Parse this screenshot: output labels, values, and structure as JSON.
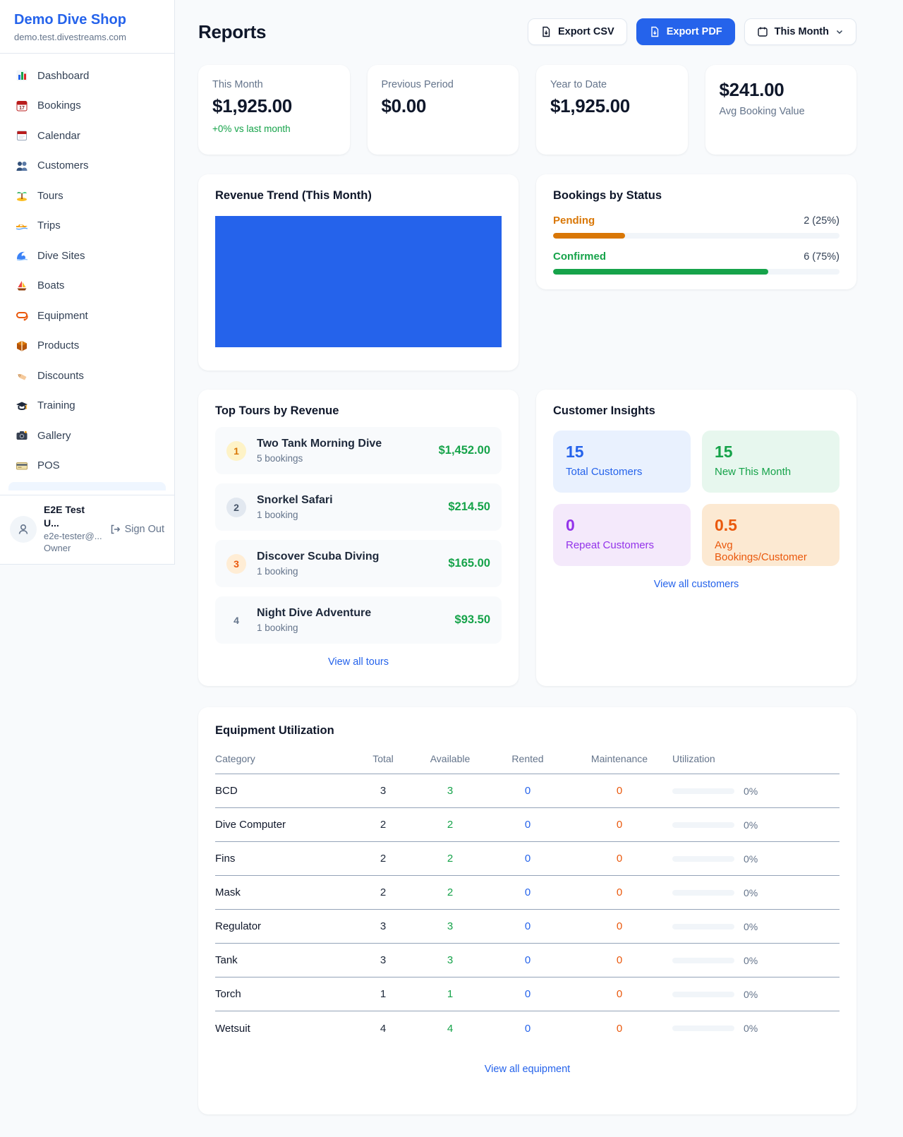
{
  "colors": {
    "accent": "#2563eb",
    "green": "#16a34a",
    "amber": "#d97706",
    "orange": "#ea580c",
    "purple": "#9333ea",
    "chart_bar": "#2563eb"
  },
  "sidebar": {
    "shop_name": "Demo Dive Shop",
    "shop_domain": "demo.test.divestreams.com",
    "items": [
      {
        "icon": "bar-chart",
        "label": "Dashboard"
      },
      {
        "icon": "calendar-17",
        "label": "Bookings"
      },
      {
        "icon": "notepad-calendar",
        "label": "Calendar"
      },
      {
        "icon": "people",
        "label": "Customers"
      },
      {
        "icon": "island",
        "label": "Tours"
      },
      {
        "icon": "speedboat",
        "label": "Trips"
      },
      {
        "icon": "wave",
        "label": "Dive Sites"
      },
      {
        "icon": "sailboat",
        "label": "Boats"
      },
      {
        "icon": "diving-mask",
        "label": "Equipment"
      },
      {
        "icon": "package",
        "label": "Products"
      },
      {
        "icon": "tag",
        "label": "Discounts"
      },
      {
        "icon": "graduation-cap",
        "label": "Training"
      },
      {
        "icon": "camera",
        "label": "Gallery"
      },
      {
        "icon": "credit-card",
        "label": "POS"
      }
    ],
    "user": {
      "name": "E2E Test U...",
      "email": "e2e-tester@...",
      "role": "Owner",
      "sign_out": "Sign Out"
    }
  },
  "header": {
    "title": "Reports",
    "export_csv": "Export CSV",
    "export_pdf": "Export PDF",
    "period": "This Month"
  },
  "stats": [
    {
      "label": "This Month",
      "value": "$1,925.00",
      "sub": "+0% vs last month"
    },
    {
      "label": "Previous Period",
      "value": "$0.00"
    },
    {
      "label": "Year to Date",
      "value": "$1,925.00"
    },
    {
      "label": "Avg Booking Value",
      "value": "$241.00"
    }
  ],
  "revenue_trend": {
    "title": "Revenue Trend (This Month)"
  },
  "bookings_by_status": {
    "title": "Bookings by Status",
    "rows": [
      {
        "label": "Pending",
        "count_text": "2 (25%)",
        "pct": 25
      },
      {
        "label": "Confirmed",
        "count_text": "6 (75%)",
        "pct": 75
      }
    ]
  },
  "chart_data": {
    "type": "bar",
    "title": "Bookings by Status",
    "categories": [
      "Pending",
      "Confirmed"
    ],
    "values": [
      2,
      6
    ],
    "percents": [
      25,
      75
    ]
  },
  "top_tours": {
    "title": "Top Tours by Revenue",
    "rows": [
      {
        "rank": "1",
        "name": "Two Tank Morning Dive",
        "bookings": "5 bookings",
        "revenue": "$1,452.00"
      },
      {
        "rank": "2",
        "name": "Snorkel Safari",
        "bookings": "1 booking",
        "revenue": "$214.50"
      },
      {
        "rank": "3",
        "name": "Discover Scuba Diving",
        "bookings": "1 booking",
        "revenue": "$165.00"
      },
      {
        "rank": "4",
        "name": "Night Dive Adventure",
        "bookings": "1 booking",
        "revenue": "$93.50"
      }
    ],
    "link": "View all tours"
  },
  "customer_insights": {
    "title": "Customer Insights",
    "tiles": [
      {
        "value": "15",
        "label": "Total Customers"
      },
      {
        "value": "15",
        "label": "New This Month"
      },
      {
        "value": "0",
        "label": "Repeat Customers"
      },
      {
        "value": "0.5",
        "label": "Avg Bookings/Customer"
      }
    ],
    "link": "View all customers"
  },
  "equipment": {
    "title": "Equipment Utilization",
    "columns": [
      "Category",
      "Total",
      "Available",
      "Rented",
      "Maintenance",
      "Utilization"
    ],
    "rows": [
      [
        "BCD",
        "3",
        "3",
        "0",
        "0",
        "0%"
      ],
      [
        "Dive Computer",
        "2",
        "2",
        "0",
        "0",
        "0%"
      ],
      [
        "Fins",
        "2",
        "2",
        "0",
        "0",
        "0%"
      ],
      [
        "Mask",
        "2",
        "2",
        "0",
        "0",
        "0%"
      ],
      [
        "Regulator",
        "3",
        "3",
        "0",
        "0",
        "0%"
      ],
      [
        "Tank",
        "3",
        "3",
        "0",
        "0",
        "0%"
      ],
      [
        "Torch",
        "1",
        "1",
        "0",
        "0",
        "0%"
      ],
      [
        "Wetsuit",
        "4",
        "4",
        "0",
        "0",
        "0%"
      ]
    ],
    "link": "View all equipment"
  }
}
